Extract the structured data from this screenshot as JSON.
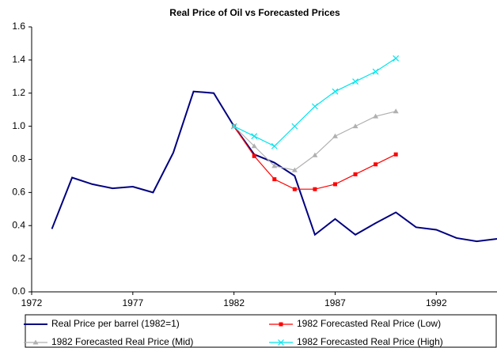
{
  "chart_data": {
    "type": "line",
    "title": "Real Price of Oil vs Forecasted Prices",
    "x": [
      1973,
      1974,
      1975,
      1976,
      1977,
      1978,
      1979,
      1980,
      1981,
      1982,
      1983,
      1984,
      1985,
      1986,
      1987,
      1988,
      1989,
      1990,
      1991,
      1992,
      1993,
      1994,
      1995
    ],
    "series": [
      {
        "name": "Real Price per barrel (1982=1)",
        "color": "#000080",
        "marker": "none",
        "values": [
          0.38,
          0.69,
          0.65,
          0.625,
          0.635,
          0.6,
          0.84,
          1.21,
          1.2,
          1.0,
          0.83,
          0.78,
          0.7,
          0.345,
          0.44,
          0.345,
          0.415,
          0.48,
          0.39,
          0.375,
          0.325,
          0.305,
          0.32
        ]
      },
      {
        "name": "1982 Forecasted Real Price (Low)",
        "color": "#ff0000",
        "marker": "square",
        "values": [
          null,
          null,
          null,
          null,
          null,
          null,
          null,
          null,
          null,
          1.0,
          0.82,
          0.68,
          0.62,
          0.62,
          0.65,
          0.71,
          0.77,
          0.83,
          null,
          null,
          null,
          null,
          null
        ]
      },
      {
        "name": "1982 Forecasted Real Price (Mid)",
        "color": "#b0b0b0",
        "marker": "triangle",
        "values": [
          null,
          null,
          null,
          null,
          null,
          null,
          null,
          null,
          null,
          1.0,
          0.88,
          0.76,
          0.735,
          0.825,
          0.94,
          1.0,
          1.06,
          1.09,
          null,
          null,
          null,
          null,
          null
        ]
      },
      {
        "name": "1982 Forecasted Real Price (High)",
        "color": "#00e5ee",
        "marker": "x",
        "values": [
          null,
          null,
          null,
          null,
          null,
          null,
          null,
          null,
          null,
          1.0,
          0.94,
          0.88,
          1.0,
          1.12,
          1.21,
          1.27,
          1.33,
          1.41,
          null,
          null,
          null,
          null,
          null
        ]
      }
    ],
    "xlim": [
      1972,
      1995
    ],
    "xticks": [
      1972,
      1977,
      1982,
      1987,
      1992
    ],
    "ylim": [
      0,
      1.6
    ],
    "yticks": [
      {
        "value": 0,
        "label": "0.0"
      },
      0.2,
      0.4,
      0.6,
      0.8,
      {
        "value": 1,
        "label": "1.0"
      },
      1.2,
      1.4,
      1.6
    ],
    "grid": false,
    "legend": "bottom"
  }
}
